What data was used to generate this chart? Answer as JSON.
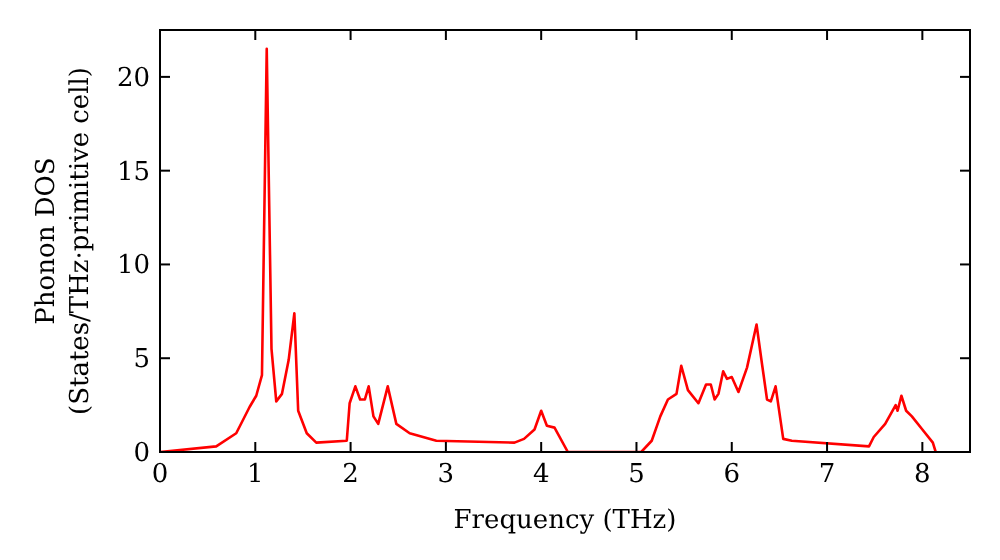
{
  "chart_data": {
    "type": "line",
    "xlabel": "Frequency (THz)",
    "ylabel": "Phonon DOS\n(States/THz·primitive cell)",
    "x": [
      0,
      0.59,
      0.8,
      0.94,
      1.01,
      1.07,
      1.12,
      1.17,
      1.22,
      1.28,
      1.35,
      1.41,
      1.45,
      1.54,
      1.64,
      1.96,
      1.99,
      2.05,
      2.1,
      2.15,
      2.19,
      2.24,
      2.29,
      2.39,
      2.48,
      2.62,
      2.9,
      3.72,
      3.82,
      3.93,
      4.0,
      4.06,
      4.14,
      4.28,
      5.05,
      5.16,
      5.25,
      5.33,
      5.42,
      5.47,
      5.54,
      5.65,
      5.73,
      5.78,
      5.82,
      5.86,
      5.91,
      5.95,
      6.0,
      6.07,
      6.16,
      6.26,
      6.32,
      6.37,
      6.41,
      6.46,
      6.54,
      6.63,
      7.44,
      7.49,
      7.61,
      7.72,
      7.74,
      7.78,
      7.83,
      7.89,
      8.0,
      8.11,
      8.14
    ],
    "series": [
      {
        "color": "#ff0000",
        "values": [
          0,
          0.3,
          1.0,
          2.4,
          3.0,
          4.1,
          21.5,
          5.5,
          2.7,
          3.1,
          4.9,
          7.4,
          2.2,
          1.0,
          0.5,
          0.6,
          2.6,
          3.5,
          2.8,
          2.8,
          3.5,
          1.9,
          1.5,
          3.5,
          1.5,
          1.0,
          0.6,
          0.5,
          0.7,
          1.2,
          2.2,
          1.4,
          1.3,
          0,
          0,
          0.6,
          1.9,
          2.8,
          3.1,
          4.6,
          3.3,
          2.6,
          3.6,
          3.6,
          2.8,
          3.1,
          4.3,
          3.9,
          4.0,
          3.2,
          4.5,
          6.8,
          4.6,
          2.8,
          2.7,
          3.5,
          0.7,
          0.6,
          0.3,
          0.8,
          1.5,
          2.5,
          2.2,
          3.0,
          2.2,
          1.9,
          1.2,
          0.5,
          0
        ]
      }
    ],
    "xlim": [
      0,
      8.5
    ],
    "xticks": [
      0,
      1,
      2,
      3,
      4,
      5,
      6,
      7,
      8
    ],
    "ylim": [
      0,
      22.5
    ],
    "yticks": [
      0,
      5,
      10,
      15,
      20
    ],
    "marker": "none",
    "line_style": "solid",
    "grid": false
  }
}
